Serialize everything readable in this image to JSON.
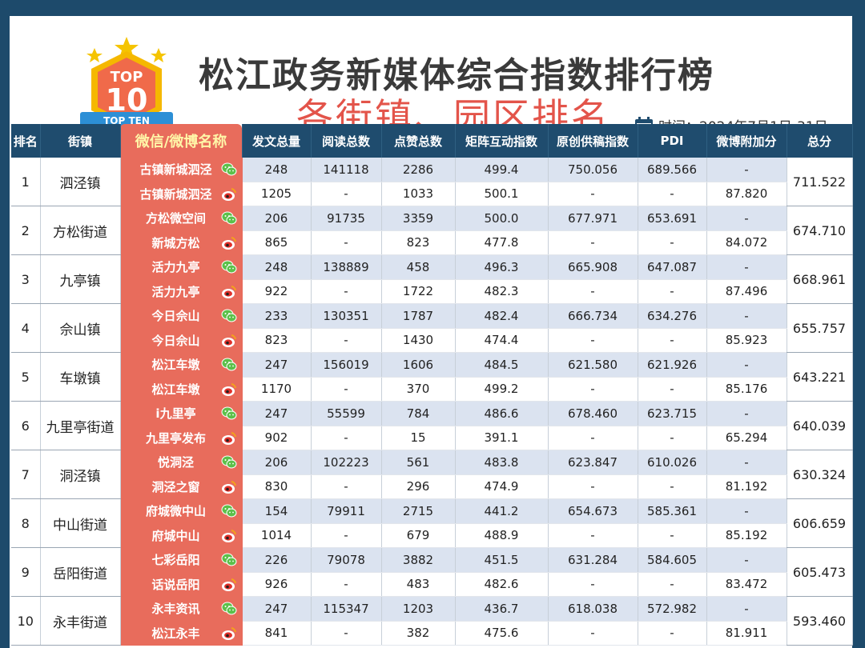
{
  "header": {
    "title": "松江政务新媒体综合指数排行榜",
    "subtitle": "各街镇、园区排名",
    "time_label": "时间：2024年7月1日-31日",
    "logo_top": "TOP",
    "logo_num": "10",
    "logo_ribbon": "TOP TEN"
  },
  "columns": [
    "排名",
    "街镇",
    "微信/微博名称",
    "发文总量",
    "阅读总数",
    "点赞总数",
    "矩阵互动指数",
    "原创供稿指数",
    "PDI",
    "微博附加分",
    "总分"
  ],
  "rows": [
    {
      "rank": "1",
      "street": "泗泾镇",
      "wechat": {
        "name": "古镇新城泗泾",
        "posts": "248",
        "reads": "141118",
        "likes": "2286",
        "interact": "499.4",
        "original": "750.056",
        "pdi": "689.566",
        "bonus": "-"
      },
      "weibo": {
        "name": "古镇新城泗泾",
        "posts": "1205",
        "reads": "-",
        "likes": "1033",
        "interact": "500.1",
        "original": "-",
        "pdi": "-",
        "bonus": "87.820"
      },
      "total": "711.522"
    },
    {
      "rank": "2",
      "street": "方松街道",
      "wechat": {
        "name": "方松微空间",
        "posts": "206",
        "reads": "91735",
        "likes": "3359",
        "interact": "500.0",
        "original": "677.971",
        "pdi": "653.691",
        "bonus": "-"
      },
      "weibo": {
        "name": "新城方松",
        "posts": "865",
        "reads": "-",
        "likes": "823",
        "interact": "477.8",
        "original": "-",
        "pdi": "-",
        "bonus": "84.072"
      },
      "total": "674.710"
    },
    {
      "rank": "3",
      "street": "九亭镇",
      "wechat": {
        "name": "活力九亭",
        "posts": "248",
        "reads": "138889",
        "likes": "458",
        "interact": "496.3",
        "original": "665.908",
        "pdi": "647.087",
        "bonus": "-"
      },
      "weibo": {
        "name": "活力九亭",
        "posts": "922",
        "reads": "-",
        "likes": "1722",
        "interact": "482.3",
        "original": "-",
        "pdi": "-",
        "bonus": "87.496"
      },
      "total": "668.961"
    },
    {
      "rank": "4",
      "street": "佘山镇",
      "wechat": {
        "name": "今日佘山",
        "posts": "233",
        "reads": "130351",
        "likes": "1787",
        "interact": "482.4",
        "original": "666.734",
        "pdi": "634.276",
        "bonus": "-"
      },
      "weibo": {
        "name": "今日佘山",
        "posts": "823",
        "reads": "-",
        "likes": "1430",
        "interact": "474.4",
        "original": "-",
        "pdi": "-",
        "bonus": "85.923"
      },
      "total": "655.757"
    },
    {
      "rank": "5",
      "street": "车墩镇",
      "wechat": {
        "name": "松江车墩",
        "posts": "247",
        "reads": "156019",
        "likes": "1606",
        "interact": "484.5",
        "original": "621.580",
        "pdi": "621.926",
        "bonus": "-"
      },
      "weibo": {
        "name": "松江车墩",
        "posts": "1170",
        "reads": "-",
        "likes": "370",
        "interact": "499.2",
        "original": "-",
        "pdi": "-",
        "bonus": "85.176"
      },
      "total": "643.221"
    },
    {
      "rank": "6",
      "street": "九里亭街道",
      "wechat": {
        "name": "i九里亭",
        "posts": "247",
        "reads": "55599",
        "likes": "784",
        "interact": "486.6",
        "original": "678.460",
        "pdi": "623.715",
        "bonus": "-"
      },
      "weibo": {
        "name": "九里亭发布",
        "posts": "902",
        "reads": "-",
        "likes": "15",
        "interact": "391.1",
        "original": "-",
        "pdi": "-",
        "bonus": "65.294"
      },
      "total": "640.039"
    },
    {
      "rank": "7",
      "street": "洞泾镇",
      "wechat": {
        "name": "悦洞泾",
        "posts": "206",
        "reads": "102223",
        "likes": "561",
        "interact": "483.8",
        "original": "623.847",
        "pdi": "610.026",
        "bonus": "-"
      },
      "weibo": {
        "name": "洞泾之窗",
        "posts": "830",
        "reads": "-",
        "likes": "296",
        "interact": "474.9",
        "original": "-",
        "pdi": "-",
        "bonus": "81.192"
      },
      "total": "630.324"
    },
    {
      "rank": "8",
      "street": "中山街道",
      "wechat": {
        "name": "府城微中山",
        "posts": "154",
        "reads": "79911",
        "likes": "2715",
        "interact": "441.2",
        "original": "654.673",
        "pdi": "585.361",
        "bonus": "-"
      },
      "weibo": {
        "name": "府城中山",
        "posts": "1014",
        "reads": "-",
        "likes": "679",
        "interact": "488.9",
        "original": "-",
        "pdi": "-",
        "bonus": "85.192"
      },
      "total": "606.659"
    },
    {
      "rank": "9",
      "street": "岳阳街道",
      "wechat": {
        "name": "七彩岳阳",
        "posts": "226",
        "reads": "79078",
        "likes": "3882",
        "interact": "451.5",
        "original": "631.284",
        "pdi": "584.605",
        "bonus": "-"
      },
      "weibo": {
        "name": "话说岳阳",
        "posts": "926",
        "reads": "-",
        "likes": "483",
        "interact": "482.6",
        "original": "-",
        "pdi": "-",
        "bonus": "83.472"
      },
      "total": "605.473"
    },
    {
      "rank": "10",
      "street": "永丰街道",
      "wechat": {
        "name": "永丰资讯",
        "posts": "247",
        "reads": "115347",
        "likes": "1203",
        "interact": "436.7",
        "original": "618.038",
        "pdi": "572.982",
        "bonus": "-"
      },
      "weibo": {
        "name": "松江永丰",
        "posts": "841",
        "reads": "-",
        "likes": "382",
        "interact": "475.6",
        "original": "-",
        "pdi": "-",
        "bonus": "81.911"
      },
      "total": "593.460"
    }
  ],
  "icons": {
    "wechat": "wechat-icon",
    "weibo": "weibo-icon",
    "calendar": "calendar-icon"
  },
  "colors": {
    "header_bg": "#1f4c6e",
    "accent": "#e86c5c",
    "title_red": "#e3544a",
    "row_tint": "#dbe3f0"
  }
}
